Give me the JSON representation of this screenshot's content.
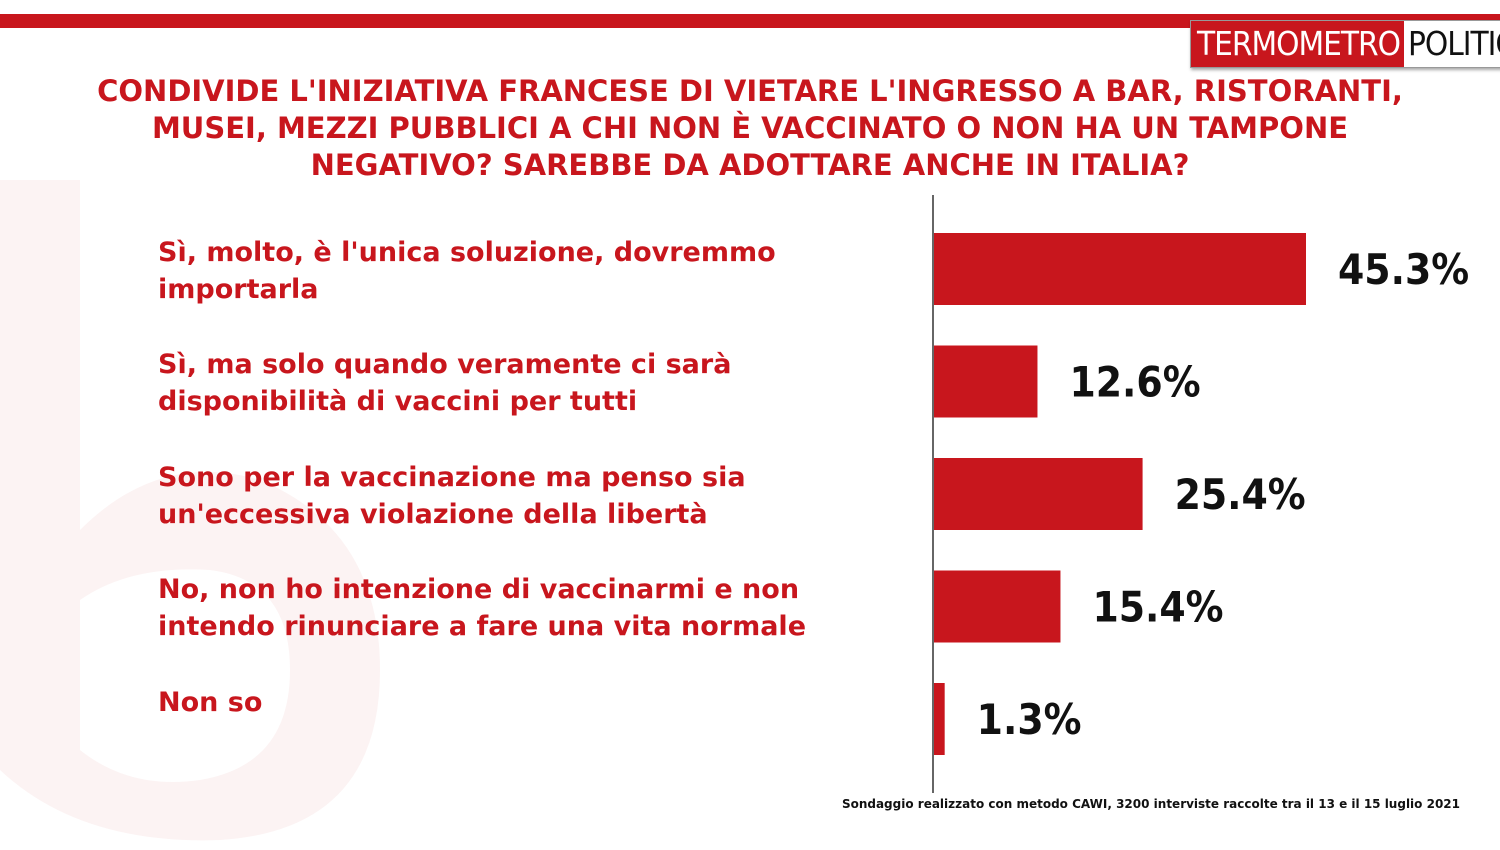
{
  "logo": {
    "part1": "TERMOMETRO",
    "part2": "POLITICO"
  },
  "colors": {
    "accent": "#c8161d",
    "text": "#111111"
  },
  "source_note": "Sondaggio realizzato con metodo CAWI, 3200 interviste raccolte tra il 13 e il 15 luglio 2021",
  "chart_data": {
    "type": "bar",
    "orientation": "horizontal",
    "title": "CONDIVIDE L'INIZIATIVA FRANCESE DI VIETARE L'INGRESSO A BAR, RISTORANTI, MUSEI, MEZZI PUBBLICI A CHI NON È VACCINATO O NON HA UN TAMPONE NEGATIVO? SAREBBE DA ADOTTARE ANCHE IN ITALIA?",
    "categories": [
      "Sì, molto, è l'unica soluzione, dovremmo importarla",
      "Sì, ma solo quando veramente ci sarà disponibilità  di vaccini per tutti",
      "Sono per la vaccinazione ma penso sia un'eccessiva violazione della libertà",
      "No, non ho intenzione di vaccinarmi e non intendo rinunciare a fare una vita normale",
      "Non so"
    ],
    "values": [
      45.3,
      12.6,
      25.4,
      15.4,
      1.3
    ],
    "value_labels": [
      "45.3%",
      "12.6%",
      "25.4%",
      "15.4%",
      "1.3%"
    ],
    "unit": "%",
    "xlim": [
      0,
      100
    ],
    "grid": false,
    "legend": "none"
  }
}
